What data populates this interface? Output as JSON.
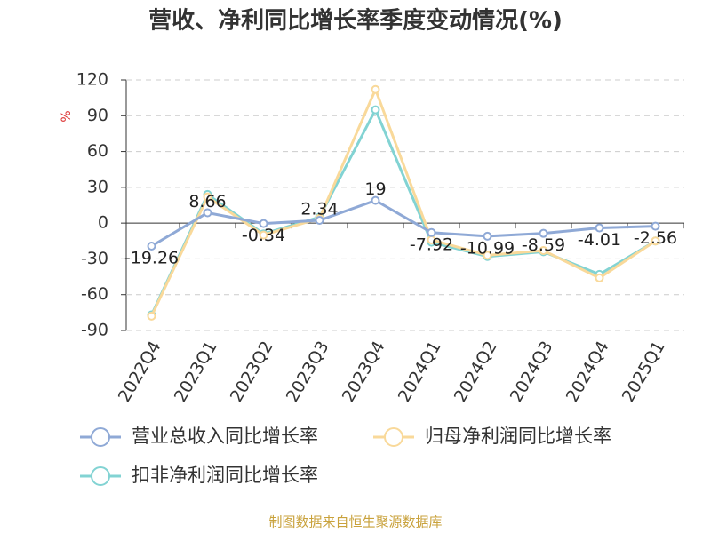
{
  "chart_data": {
    "type": "line",
    "title": "营收、净利同比增长率季度变动情况(%)",
    "y_label": "%",
    "categories": [
      "2022Q4",
      "2023Q1",
      "2023Q2",
      "2023Q3",
      "2023Q4",
      "2024Q1",
      "2024Q2",
      "2024Q3",
      "2024Q4",
      "2025Q1"
    ],
    "series": [
      {
        "name": "营业总收入同比增长率",
        "color": "#8fa9d6",
        "values": [
          -19.26,
          8.66,
          -0.34,
          2.34,
          19,
          -7.92,
          -10.99,
          -8.59,
          -4.01,
          -2.56
        ],
        "labels": true
      },
      {
        "name": "归母净利润同比增长率",
        "color": "#f9d99a",
        "values": [
          -78,
          22,
          -10,
          4,
          112,
          -14,
          -27,
          -23,
          -46,
          -15
        ]
      },
      {
        "name": "扣非净利润同比增长率",
        "color": "#82d3d3",
        "values": [
          -77,
          24,
          -9,
          5,
          95,
          -16,
          -28,
          -24,
          -43,
          -15
        ]
      }
    ],
    "ylim": [
      -90,
      120
    ],
    "yticks": [
      -90,
      -60,
      -30,
      0,
      30,
      60,
      90,
      120
    ],
    "grid": true,
    "source": "制图数据来自恒生聚源数据库"
  }
}
